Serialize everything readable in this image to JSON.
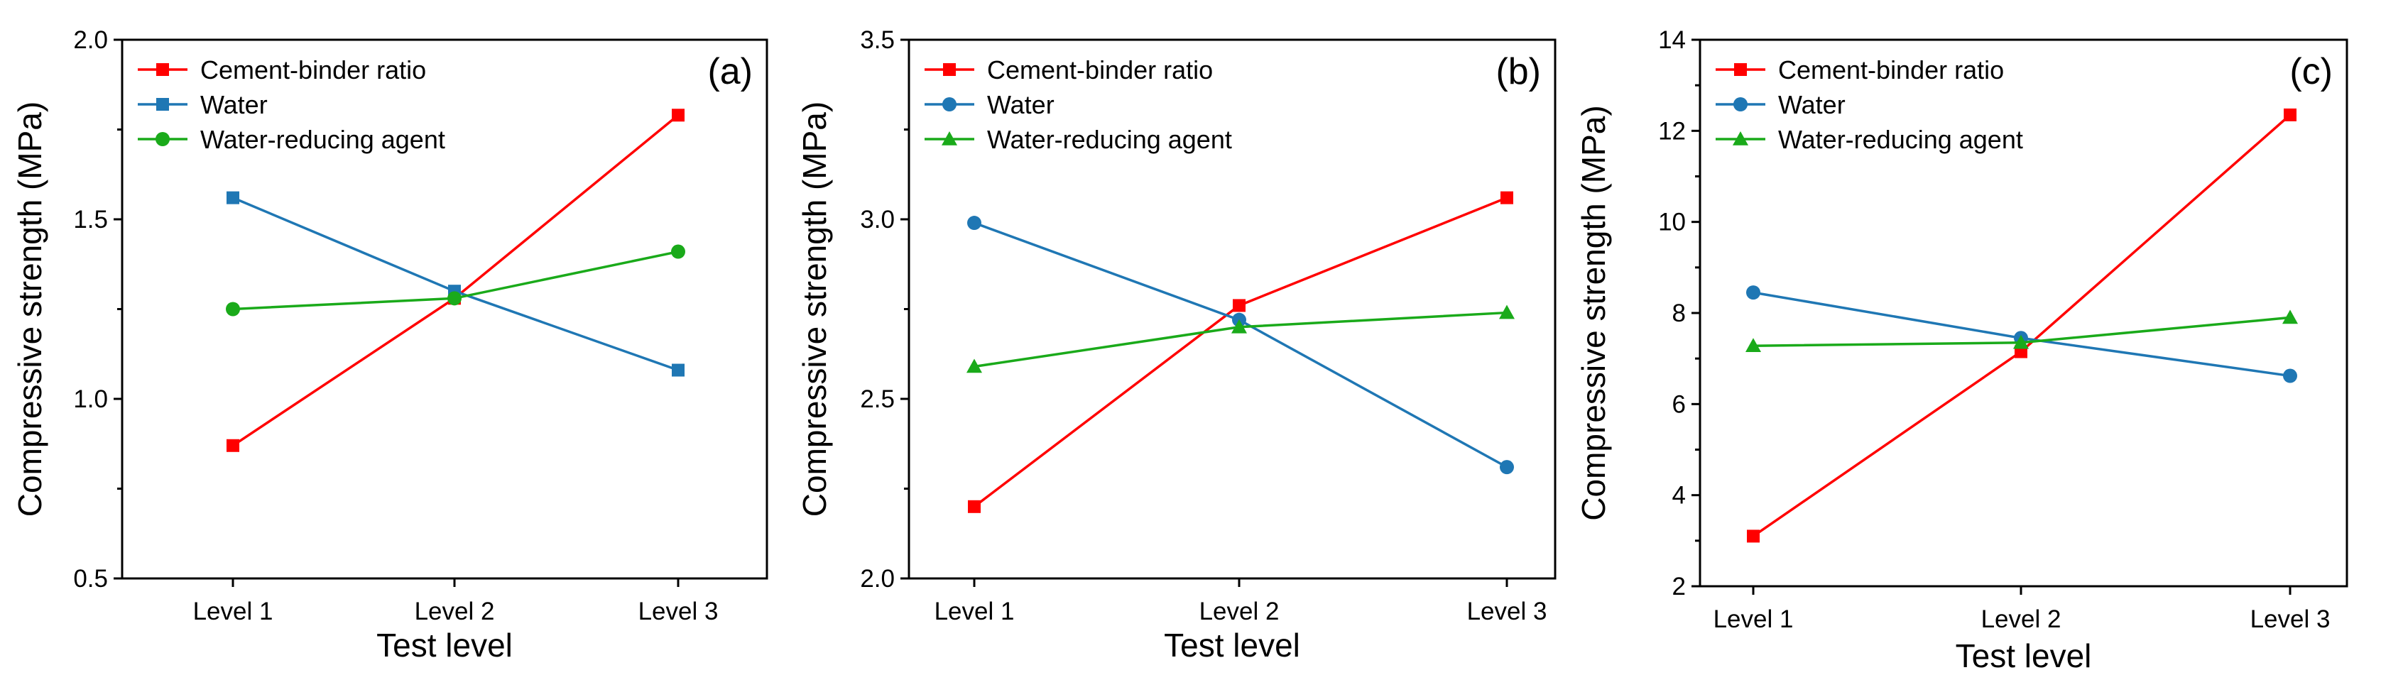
{
  "figure": {
    "description_free": true
  },
  "chart_data": [
    {
      "type": "line",
      "panel_label": "(a)",
      "xlabel": "Test level",
      "ylabel": "Compressive strength  (MPa)",
      "categories": [
        "Level 1",
        "Level 2",
        "Level 3"
      ],
      "ylim": [
        0.5,
        2.0
      ],
      "yticks": [
        0.5,
        1.0,
        1.5,
        2.0
      ],
      "ytick_labels": [
        "0.5",
        "1.0",
        "1.5",
        "2.0"
      ],
      "legend_position": "top-left",
      "series": [
        {
          "name": "Cement-binder ratio",
          "color": "#ff0000",
          "marker": "square",
          "values": [
            0.87,
            1.28,
            1.79
          ]
        },
        {
          "name": "Water",
          "color": "#1f77b4",
          "marker": "square",
          "values": [
            1.56,
            1.3,
            1.08
          ]
        },
        {
          "name": "Water-reducing agent",
          "color": "#1aaa1a",
          "marker": "circle",
          "values": [
            1.25,
            1.28,
            1.41
          ]
        }
      ]
    },
    {
      "type": "line",
      "panel_label": "(b)",
      "xlabel": "Test level",
      "ylabel": "Compressive strength  (MPa)",
      "categories": [
        "Level 1",
        "Level 2",
        "Level 3"
      ],
      "ylim": [
        2.0,
        3.5
      ],
      "yticks": [
        2.0,
        2.5,
        3.0,
        3.5
      ],
      "ytick_labels": [
        "2.0",
        "2.5",
        "3.0",
        "3.5"
      ],
      "legend_position": "top-left",
      "series": [
        {
          "name": "Cement-binder ratio",
          "color": "#ff0000",
          "marker": "square",
          "values": [
            2.2,
            2.76,
            3.06
          ]
        },
        {
          "name": "Water",
          "color": "#1f77b4",
          "marker": "circle",
          "values": [
            2.99,
            2.72,
            2.31
          ]
        },
        {
          "name": "Water-reducing agent",
          "color": "#1aaa1a",
          "marker": "triangle",
          "values": [
            2.59,
            2.7,
            2.74
          ]
        }
      ]
    },
    {
      "type": "line",
      "panel_label": "(c)",
      "xlabel": "Test level",
      "ylabel": "Compressive strength  (MPa)",
      "categories": [
        "Level 1",
        "Level 2",
        "Level 3"
      ],
      "ylim": [
        2,
        14
      ],
      "yticks": [
        2,
        4,
        6,
        8,
        10,
        12,
        14
      ],
      "ytick_labels": [
        "2",
        "4",
        "6",
        "8",
        "10",
        "12",
        "14"
      ],
      "legend_position": "top-left",
      "series": [
        {
          "name": "Cement-binder ratio",
          "color": "#ff0000",
          "marker": "square",
          "values": [
            3.1,
            7.15,
            12.35
          ]
        },
        {
          "name": "Water",
          "color": "#1f77b4",
          "marker": "circle",
          "values": [
            8.45,
            7.45,
            6.62
          ]
        },
        {
          "name": "Water-reducing agent",
          "color": "#1aaa1a",
          "marker": "triangle",
          "values": [
            7.28,
            7.35,
            7.9
          ]
        }
      ]
    }
  ]
}
